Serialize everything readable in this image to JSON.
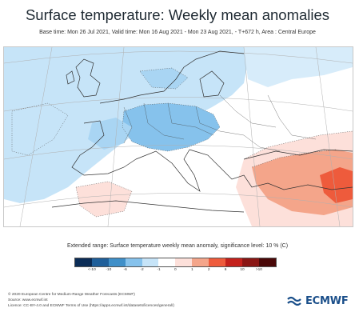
{
  "title": "Surface temperature: Weekly mean anomalies",
  "subtitle": "Base time: Mon 26 Jul 2021, Valid time: Mon 16 Aug 2021 - Mon 23 Aug 2021, - T+672 h, Area : Central Europe",
  "legend": {
    "title": "Extended range: Surface temperature weekly mean anomaly, significance level: 10 % (C)",
    "ticks": [
      "<-10",
      "-10",
      "-6",
      "-2",
      "-1",
      "0",
      "1",
      "2",
      "6",
      "10",
      ">10"
    ],
    "colors": [
      "#0b2c56",
      "#1f5f9a",
      "#3f8fc8",
      "#86c2ec",
      "#c6e4f8",
      "#ffffff",
      "#fde0da",
      "#f4a58a",
      "#ee5b3c",
      "#c4211c",
      "#8a1614",
      "#4a0808"
    ]
  },
  "footer": {
    "copyright": "© 2020 European Centre for Medium-Range Weather Forecasts (ECMWF)",
    "source": "Source: www.ecmwf.int",
    "licence": "Licence: CC-BY-4.0 and ECMWF Terms of Use (https://apps.ecmwf.int/datasets/licences/general/)"
  },
  "logo": {
    "text": "ECMWF"
  }
}
